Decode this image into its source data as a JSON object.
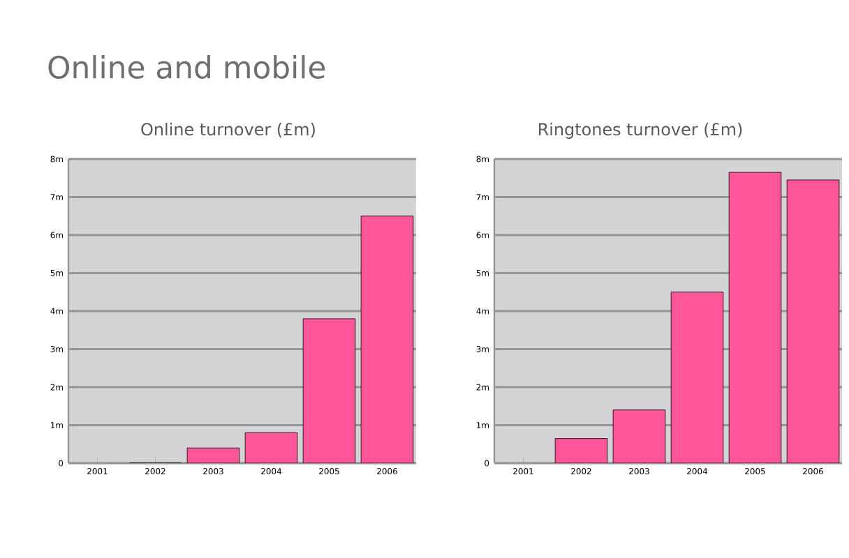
{
  "chart_data": [
    {
      "type": "bar",
      "title": "Online and mobile",
      "subtitle": "Online turnover (£m)",
      "categories": [
        "2001",
        "2002",
        "2003",
        "2004",
        "2005",
        "2006"
      ],
      "values": [
        null,
        0,
        0.4,
        0.8,
        3.8,
        6.5
      ],
      "color": "#ff5599",
      "ylim": [
        0,
        8
      ],
      "yticks": [
        0,
        {
          "value": 1,
          "label": "1m"
        },
        {
          "value": 2,
          "label": "2m"
        },
        {
          "value": 3,
          "label": "3m"
        },
        {
          "value": 4,
          "label": "4m"
        },
        {
          "value": 5,
          "label": "5m"
        },
        {
          "value": 6,
          "label": "6m"
        },
        {
          "value": 7,
          "label": "7m"
        },
        {
          "value": 8,
          "label": "8m"
        }
      ],
      "grid": "y"
    },
    {
      "type": "bar",
      "title": "Ringtones turnover (£m)",
      "categories": [
        "2001",
        "2002",
        "2003",
        "2004",
        "2005",
        "2006"
      ],
      "values": [
        null,
        0.65,
        1.4,
        4.5,
        7.65,
        7.45
      ],
      "color": "#ff5599",
      "ylim": [
        0,
        8
      ],
      "yticks": [
        0,
        {
          "value": 1,
          "label": "1m"
        },
        {
          "value": 2,
          "label": "2m"
        },
        {
          "value": 3,
          "label": "3m"
        },
        {
          "value": 4,
          "label": "4m"
        },
        {
          "value": 5,
          "label": "5m"
        },
        {
          "value": 6,
          "label": "6m"
        },
        {
          "value": 7,
          "label": "7m"
        },
        {
          "value": 8,
          "label": "8m"
        }
      ],
      "grid": "y"
    }
  ]
}
